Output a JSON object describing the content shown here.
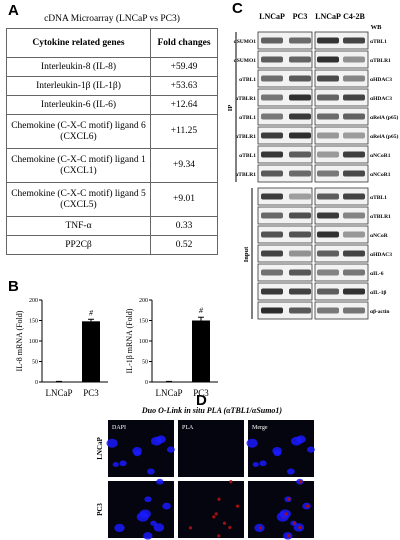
{
  "panel_labels": [
    "A",
    "B",
    "C",
    "D"
  ],
  "panel_a": {
    "title": "cDNA Microarray (LNCaP vs PC3)",
    "header": [
      "Cytokine related genes",
      "Fold changes"
    ],
    "rows": [
      [
        "Interleukin-8 (IL-8)",
        "+59.49"
      ],
      [
        "Interleukin-1β (IL-1β)",
        "+53.63"
      ],
      [
        "Interleukin-6 (IL-6)",
        "+12.64"
      ],
      [
        "Chemokine (C-X-C motif) ligand 6 (CXCL6)",
        "+11.25"
      ],
      [
        "Chemokine (C-X-C motif) ligand 1 (CXCL1)",
        "+9.34"
      ],
      [
        "Chemokine (C-X-C motif) ligand 5 (CXCL5)",
        "+9.01"
      ],
      [
        "TNF-α",
        "0.33"
      ],
      [
        "PP2Cβ",
        "0.52"
      ]
    ]
  },
  "chart_data": [
    {
      "type": "bar",
      "ylabel": "IL-8 mRNA (Fold)",
      "categories": [
        "LNCaP",
        "PC3"
      ],
      "values": [
        1,
        148
      ],
      "errors": [
        0.5,
        5
      ],
      "annotation": "#",
      "color": "#000000",
      "ylim": [
        0,
        200
      ],
      "yticks": [
        0,
        50,
        100,
        150,
        200
      ]
    },
    {
      "type": "bar",
      "ylabel": "IL-1β mRNA (Fold)",
      "categories": [
        "LNCaP",
        "PC3"
      ],
      "values": [
        1,
        150
      ],
      "errors": [
        0.5,
        8
      ],
      "annotation": "#",
      "color": "#000000",
      "ylim": [
        0,
        200
      ],
      "yticks": [
        0,
        50,
        100,
        150,
        200
      ]
    }
  ],
  "panel_c": {
    "columns": [
      "LNCaP",
      "PC3",
      "LNCaP",
      "C4-2B"
    ],
    "wb_label": "WB",
    "ip_label": "IP",
    "input_label": "Input",
    "ip_rows": [
      {
        "left": "αSUMO1",
        "right": "αTBL1"
      },
      {
        "left": "αSUMO1",
        "right": "αTBLR1"
      },
      {
        "left": "αTBL1",
        "right": "αHDAC3"
      },
      {
        "left": "αTBLR1",
        "right": "αHDAC3"
      },
      {
        "left": "αTBL1",
        "right": "αRelA (p65)"
      },
      {
        "left": "αTBLR1",
        "right": "αRelA (p65)"
      },
      {
        "left": "αTBL1",
        "right": "αNCoR1"
      },
      {
        "left": "αTBLR1",
        "right": "αNCoR1"
      }
    ],
    "input_rows": [
      "αTBL1",
      "αTBLR1",
      "αNCoR",
      "αHDAC3",
      "αIL-6",
      "αIL-1β",
      "αβ-actin"
    ]
  },
  "panel_d": {
    "title": "Duo O-Link in situ PLA (αTBL1/αSumo1)",
    "columns": [
      "DAPI",
      "PLA",
      "Merge"
    ],
    "rows": [
      "LNCaP",
      "PC3"
    ]
  }
}
